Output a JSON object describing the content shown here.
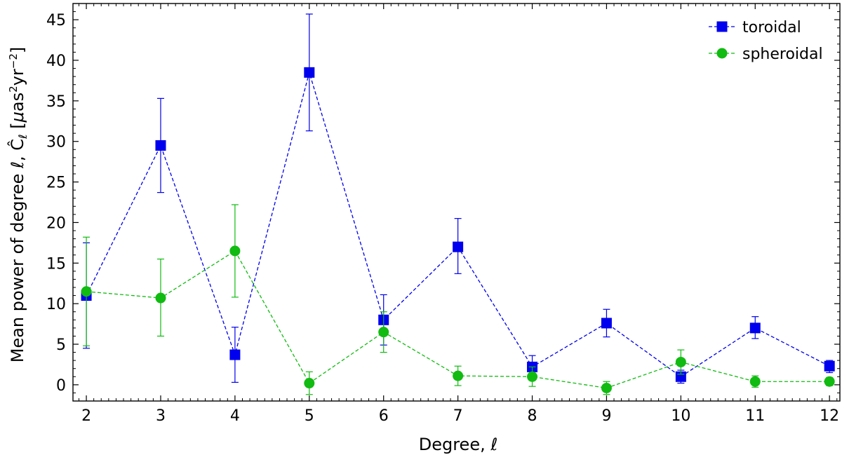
{
  "chart_data": {
    "type": "line",
    "xlabel": "Degree,  ℓ",
    "ylabel_parts": {
      "prefix": "Mean power of degree ",
      "ell": "ℓ",
      "sep": ",  ",
      "C": "Ĉ",
      "sub": "ℓ",
      "units_open": "  [",
      "mu": "μ",
      "as": "as",
      "sq": "2",
      "yr": "yr",
      "neg2": "−2",
      "units_close": "]"
    },
    "xlim": [
      1.82,
      12.14
    ],
    "ylim": [
      -2,
      47
    ],
    "xticks": [
      2,
      3,
      4,
      5,
      6,
      7,
      8,
      9,
      10,
      11,
      12
    ],
    "yticks": [
      0,
      5,
      10,
      15,
      20,
      25,
      30,
      35,
      40,
      45
    ],
    "grid": false,
    "legend_position": "top-right",
    "series": [
      {
        "name": "toroidal",
        "color": "#0000ee",
        "marker": "square",
        "linestyle": "dashed",
        "points": [
          {
            "x": 2,
            "y": 11.0,
            "lo": 4.5,
            "hi": 17.5
          },
          {
            "x": 3,
            "y": 29.5,
            "lo": 23.7,
            "hi": 35.3
          },
          {
            "x": 4,
            "y": 3.7,
            "lo": 0.3,
            "hi": 7.1
          },
          {
            "x": 5,
            "y": 38.5,
            "lo": 31.3,
            "hi": 45.7
          },
          {
            "x": 6,
            "y": 8.0,
            "lo": 4.9,
            "hi": 11.1
          },
          {
            "x": 7,
            "y": 17.0,
            "lo": 13.7,
            "hi": 20.5
          },
          {
            "x": 8,
            "y": 2.2,
            "lo": 0.9,
            "hi": 3.6
          },
          {
            "x": 9,
            "y": 7.6,
            "lo": 5.9,
            "hi": 9.3
          },
          {
            "x": 10,
            "y": 1.0,
            "lo": 0.2,
            "hi": 1.8
          },
          {
            "x": 11,
            "y": 7.0,
            "lo": 5.7,
            "hi": 8.4
          },
          {
            "x": 12,
            "y": 2.3,
            "lo": 1.5,
            "hi": 3.0
          }
        ]
      },
      {
        "name": "spheroidal",
        "color": "#11bb11",
        "marker": "circle",
        "linestyle": "dashed",
        "points": [
          {
            "x": 2,
            "y": 11.5,
            "lo": 4.8,
            "hi": 18.2
          },
          {
            "x": 3,
            "y": 10.7,
            "lo": 6.0,
            "hi": 15.5
          },
          {
            "x": 4,
            "y": 16.5,
            "lo": 10.8,
            "hi": 22.2
          },
          {
            "x": 5,
            "y": 0.2,
            "lo": -1.2,
            "hi": 1.6
          },
          {
            "x": 6,
            "y": 6.5,
            "lo": 4.0,
            "hi": 9.0
          },
          {
            "x": 7,
            "y": 1.1,
            "lo": -0.1,
            "hi": 2.3
          },
          {
            "x": 8,
            "y": 1.0,
            "lo": -0.2,
            "hi": 2.2
          },
          {
            "x": 9,
            "y": -0.4,
            "lo": -1.2,
            "hi": 0.4
          },
          {
            "x": 10,
            "y": 2.8,
            "lo": 1.3,
            "hi": 4.3
          },
          {
            "x": 11,
            "y": 0.4,
            "lo": -0.3,
            "hi": 1.1
          },
          {
            "x": 12,
            "y": 0.4,
            "lo": -0.1,
            "hi": 0.9
          }
        ]
      }
    ]
  }
}
